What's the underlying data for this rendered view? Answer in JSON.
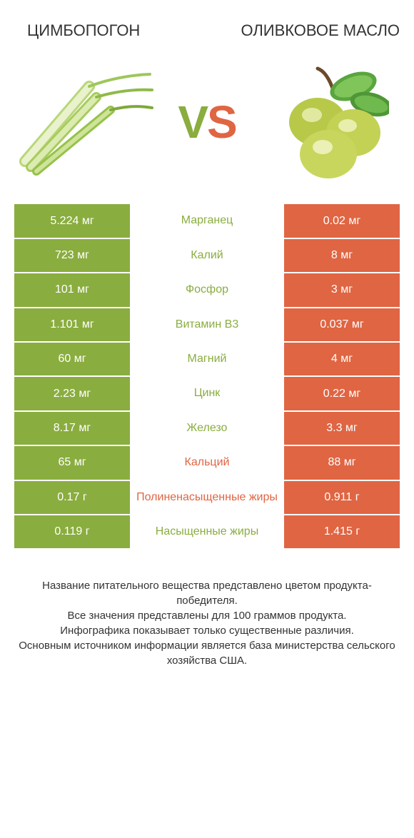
{
  "colors": {
    "green": "#8aad3f",
    "orange": "#e06543",
    "text": "#333333",
    "bg": "#ffffff"
  },
  "typography": {
    "title_fontsize": 22,
    "vs_fontsize": 64,
    "cell_fontsize": 16,
    "footnote_fontsize": 15
  },
  "header": {
    "left_title": "ЦИМБОПОГОН",
    "right_title": "ОЛИВКОВОЕ МАСЛО",
    "vs_v": "V",
    "vs_s": "S"
  },
  "icons": {
    "left": "lemongrass-icon",
    "right": "olives-icon"
  },
  "rows": [
    {
      "left": "5.224 мг",
      "label": "Марганец",
      "right": "0.02 мг",
      "winner": "left"
    },
    {
      "left": "723 мг",
      "label": "Калий",
      "right": "8 мг",
      "winner": "left"
    },
    {
      "left": "101 мг",
      "label": "Фосфор",
      "right": "3 мг",
      "winner": "left"
    },
    {
      "left": "1.101 мг",
      "label": "Витамин B3",
      "right": "0.037 мг",
      "winner": "left"
    },
    {
      "left": "60 мг",
      "label": "Магний",
      "right": "4 мг",
      "winner": "left"
    },
    {
      "left": "2.23 мг",
      "label": "Цинк",
      "right": "0.22 мг",
      "winner": "left"
    },
    {
      "left": "8.17 мг",
      "label": "Железо",
      "right": "3.3 мг",
      "winner": "left"
    },
    {
      "left": "65 мг",
      "label": "Кальций",
      "right": "88 мг",
      "winner": "right"
    },
    {
      "left": "0.17 г",
      "label": "Полиненасыщенные жиры",
      "right": "0.911 г",
      "winner": "right"
    },
    {
      "left": "0.119 г",
      "label": "Насыщенные жиры",
      "right": "1.415 г",
      "winner": "left"
    }
  ],
  "footnote": "Название питательного вещества представлено цветом продукта-победителя.\nВсе значения представлены для 100 граммов продукта.\nИнфографика показывает только существенные различия.\nОсновным источником информации является база министерства сельского хозяйства США."
}
